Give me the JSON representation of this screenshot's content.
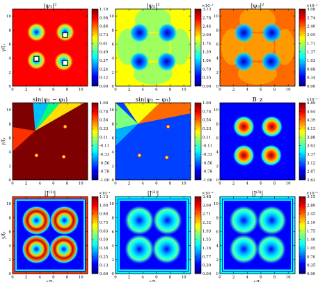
{
  "colormap": [
    "#00007f",
    "#0000ff",
    "#007fff",
    "#00ffff",
    "#7fff7f",
    "#ffff00",
    "#ff7f00",
    "#ff0000",
    "#7f0000"
  ],
  "chart_data": [
    {
      "type": "heatmap",
      "title": "|ψ₁|²",
      "xlabel": "",
      "ylabel": "y/ξ₁",
      "xlim": [
        0,
        11
      ],
      "ylim": [
        0,
        11
      ],
      "xticks": [
        0,
        2,
        4,
        6,
        8,
        10
      ],
      "yticks": [
        0,
        2,
        4,
        6,
        8,
        10
      ],
      "colorbar": {
        "ticks": [
          "0.00",
          "0.12",
          "0.24",
          "0.37",
          "0.49",
          "0.61",
          "0.73",
          "0.86",
          "0.98",
          "1.10"
        ],
        "multiplier": ""
      },
      "features": [
        {
          "x": 3.5,
          "y": 7.7
        },
        {
          "x": 7.7,
          "y": 7.7
        },
        {
          "x": 3.5,
          "y": 3.7
        },
        {
          "x": 7.5,
          "y": 3.5
        }
      ],
      "markers": [
        {
          "x": 7.7,
          "y": 7.3
        },
        {
          "x": 3.5,
          "y": 3.9
        },
        {
          "x": 7.7,
          "y": 3.3
        }
      ]
    },
    {
      "type": "heatmap",
      "title": "|ψ₂|²",
      "xlabel": "",
      "ylabel": "",
      "xlim": [
        0,
        11
      ],
      "ylim": [
        0,
        11
      ],
      "xticks": [
        0,
        2,
        4,
        6,
        8,
        10
      ],
      "yticks": [
        0,
        2,
        4,
        6,
        8,
        10
      ],
      "colorbar": {
        "ticks": [
          "0.00",
          "0.35",
          "0.70",
          "1.04",
          "1.39",
          "1.74",
          "2.09",
          "2.44",
          "2.78",
          "3.13"
        ],
        "multiplier": "×10⁻¹"
      },
      "features": [
        {
          "x": 3.5,
          "y": 7.6
        },
        {
          "x": 7.6,
          "y": 7.6
        },
        {
          "x": 3.5,
          "y": 3.5
        },
        {
          "x": 7.5,
          "y": 3.5
        }
      ]
    },
    {
      "type": "heatmap",
      "title": "|ψ₃|²",
      "xlabel": "",
      "ylabel": "",
      "xlim": [
        0,
        11
      ],
      "ylim": [
        0,
        11
      ],
      "xticks": [
        0,
        2,
        4,
        6,
        8,
        10
      ],
      "yticks": [
        0,
        2,
        4,
        6,
        8,
        10
      ],
      "colorbar": {
        "ticks": [
          "0.00",
          "0.34",
          "0.68",
          "1.03",
          "1.37",
          "1.71",
          "2.05",
          "2.40",
          "2.74",
          "3.08"
        ],
        "multiplier": "×10⁻¹"
      },
      "features": [
        {
          "x": 3.5,
          "y": 7.6
        },
        {
          "x": 7.6,
          "y": 7.6
        },
        {
          "x": 3.5,
          "y": 3.5
        },
        {
          "x": 7.5,
          "y": 3.5
        }
      ]
    },
    {
      "type": "heatmap",
      "title": "sin(φ₂ − φ₁)",
      "xlabel": "",
      "ylabel": "y/ξ₁",
      "xlim": [
        0,
        11
      ],
      "ylim": [
        0,
        11
      ],
      "xticks": [
        0,
        2,
        4,
        6,
        8,
        10
      ],
      "yticks": [
        0,
        2,
        4,
        6,
        8,
        10
      ],
      "colorbar": {
        "ticks": [
          "-1.00",
          "-0.78",
          "-0.56",
          "-0.33",
          "-0.11",
          "0.11",
          "0.33",
          "0.56",
          "0.78",
          "1.00"
        ],
        "multiplier": ""
      },
      "features": [
        {
          "x": 7.7,
          "y": 7.6
        },
        {
          "x": 3.5,
          "y": 3.5
        },
        {
          "x": 7.5,
          "y": 3.3
        }
      ]
    },
    {
      "type": "heatmap",
      "title": "sin(φ₃ − φ₁)",
      "xlabel": "",
      "ylabel": "",
      "xlim": [
        0,
        11
      ],
      "ylim": [
        0,
        11
      ],
      "xticks": [
        0,
        2,
        4,
        6,
        8,
        10
      ],
      "yticks": [
        0,
        2,
        4,
        6,
        8,
        10
      ],
      "colorbar": {
        "ticks": [
          "-1.00",
          "-0.78",
          "-0.56",
          "-0.33",
          "-0.11",
          "0.11",
          "0.33",
          "0.56",
          "0.78",
          "1.00"
        ],
        "multiplier": ""
      },
      "features": [
        {
          "x": 7.7,
          "y": 7.6
        },
        {
          "x": 3.5,
          "y": 3.5
        },
        {
          "x": 7.5,
          "y": 3.2
        }
      ]
    },
    {
      "type": "heatmap",
      "title": "B_z",
      "xlabel": "",
      "ylabel": "",
      "xlim": [
        0,
        11
      ],
      "ylim": [
        0,
        11
      ],
      "xticks": [
        0,
        2,
        4,
        6,
        8,
        10
      ],
      "yticks": [
        0,
        2,
        4,
        6,
        8,
        10
      ],
      "colorbar": {
        "ticks": [
          "2.62",
          "2.87",
          "3.12",
          "3.37",
          "3.63",
          "3.88",
          "4.13",
          "4.39",
          "4.64",
          "4.89"
        ],
        "multiplier": "×10⁻¹"
      },
      "features": [
        {
          "x": 3.5,
          "y": 7.6
        },
        {
          "x": 7.6,
          "y": 7.6
        },
        {
          "x": 3.5,
          "y": 3.5
        },
        {
          "x": 7.5,
          "y": 3.5
        }
      ]
    },
    {
      "type": "heatmap",
      "title": "|J⁽¹⁾|",
      "xlabel": "x/ξ₁",
      "ylabel": "y/ξ₁",
      "xlim": [
        0,
        11
      ],
      "ylim": [
        0,
        11
      ],
      "xticks": [
        0,
        2,
        4,
        6,
        8,
        10
      ],
      "yticks": [
        0,
        2,
        4,
        6,
        8,
        10
      ],
      "colorbar": {
        "ticks": [
          "0.00",
          "0.13",
          "0.25",
          "0.38",
          "0.50",
          "0.63",
          "0.75",
          "0.88",
          "1.00",
          "1.13"
        ],
        "multiplier": "×10⁻¹"
      },
      "features": [
        {
          "x": 3.5,
          "y": 7.6
        },
        {
          "x": 7.6,
          "y": 7.6
        },
        {
          "x": 3.5,
          "y": 3.5
        },
        {
          "x": 7.5,
          "y": 3.5
        }
      ]
    },
    {
      "type": "heatmap",
      "title": "|J⁽²⁾|",
      "xlabel": "x/ξ₁",
      "ylabel": "",
      "xlim": [
        0,
        11
      ],
      "ylim": [
        0,
        11
      ],
      "xticks": [
        0,
        2,
        4,
        6,
        8,
        10
      ],
      "yticks": [
        0,
        2,
        4,
        6,
        8,
        10
      ],
      "colorbar": {
        "ticks": [
          "0.00",
          "0.39",
          "0.77",
          "1.16",
          "1.55",
          "1.93",
          "2.32",
          "2.71",
          "3.09",
          "3.48"
        ],
        "multiplier": "×10⁻²"
      },
      "features": [
        {
          "x": 3.5,
          "y": 7.6
        },
        {
          "x": 7.6,
          "y": 7.6
        },
        {
          "x": 3.5,
          "y": 3.5
        },
        {
          "x": 7.5,
          "y": 3.5
        }
      ]
    },
    {
      "type": "heatmap",
      "title": "|J⁽³⁾|",
      "xlabel": "x/ξ₁",
      "ylabel": "",
      "xlim": [
        0,
        11
      ],
      "ylim": [
        0,
        11
      ],
      "xticks": [
        0,
        2,
        4,
        6,
        8,
        10
      ],
      "yticks": [
        0,
        2,
        4,
        6,
        8,
        10
      ],
      "colorbar": {
        "ticks": [
          "0.00",
          "0.35",
          "0.70",
          "1.05",
          "1.40",
          "1.75",
          "2.10",
          "2.45",
          "2.80",
          "3.15"
        ],
        "multiplier": "×10⁻²"
      },
      "features": [
        {
          "x": 3.5,
          "y": 7.6
        },
        {
          "x": 7.6,
          "y": 7.6
        },
        {
          "x": 3.5,
          "y": 3.5
        },
        {
          "x": 7.5,
          "y": 3.5
        }
      ]
    }
  ]
}
